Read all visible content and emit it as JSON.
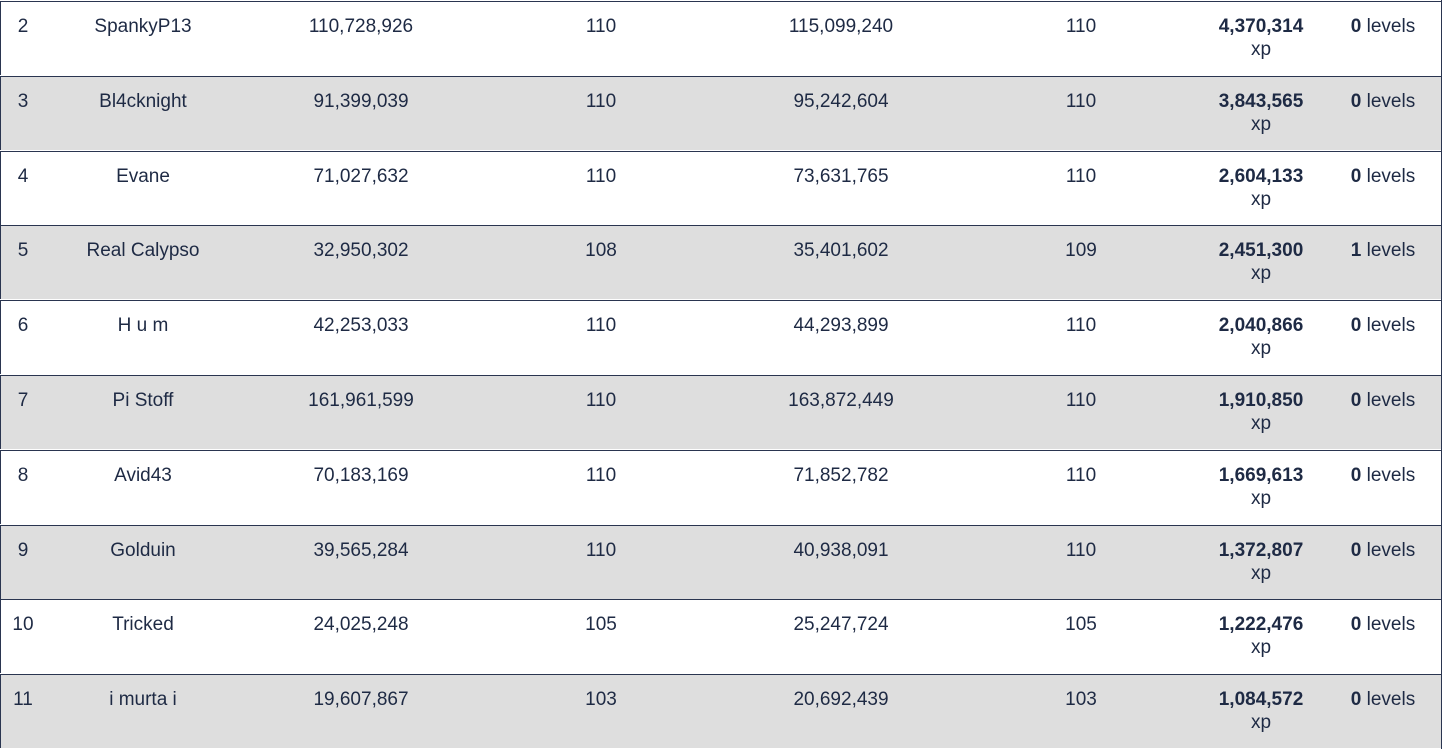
{
  "rows": [
    {
      "rank": "2",
      "name": "SpankyP13",
      "xp_start": "110,728,926",
      "level_start": "110",
      "xp_end": "115,099,240",
      "level_end": "110",
      "xp_gained": "4,370,314",
      "xp_unit": "xp",
      "levels_gained": "0",
      "levels_unit": "levels"
    },
    {
      "rank": "3",
      "name": "Bl4cknight",
      "xp_start": "91,399,039",
      "level_start": "110",
      "xp_end": "95,242,604",
      "level_end": "110",
      "xp_gained": "3,843,565",
      "xp_unit": "xp",
      "levels_gained": "0",
      "levels_unit": "levels"
    },
    {
      "rank": "4",
      "name": "Evane",
      "xp_start": "71,027,632",
      "level_start": "110",
      "xp_end": "73,631,765",
      "level_end": "110",
      "xp_gained": "2,604,133",
      "xp_unit": "xp",
      "levels_gained": "0",
      "levels_unit": "levels"
    },
    {
      "rank": "5",
      "name": "Real Calypso",
      "xp_start": "32,950,302",
      "level_start": "108",
      "xp_end": "35,401,602",
      "level_end": "109",
      "xp_gained": "2,451,300",
      "xp_unit": "xp",
      "levels_gained": "1",
      "levels_unit": "levels"
    },
    {
      "rank": "6",
      "name": "H u m",
      "xp_start": "42,253,033",
      "level_start": "110",
      "xp_end": "44,293,899",
      "level_end": "110",
      "xp_gained": "2,040,866",
      "xp_unit": "xp",
      "levels_gained": "0",
      "levels_unit": "levels"
    },
    {
      "rank": "7",
      "name": "Pi Stoff",
      "xp_start": "161,961,599",
      "level_start": "110",
      "xp_end": "163,872,449",
      "level_end": "110",
      "xp_gained": "1,910,850",
      "xp_unit": "xp",
      "levels_gained": "0",
      "levels_unit": "levels"
    },
    {
      "rank": "8",
      "name": "Avid43",
      "xp_start": "70,183,169",
      "level_start": "110",
      "xp_end": "71,852,782",
      "level_end": "110",
      "xp_gained": "1,669,613",
      "xp_unit": "xp",
      "levels_gained": "0",
      "levels_unit": "levels"
    },
    {
      "rank": "9",
      "name": "Golduin",
      "xp_start": "39,565,284",
      "level_start": "110",
      "xp_end": "40,938,091",
      "level_end": "110",
      "xp_gained": "1,372,807",
      "xp_unit": "xp",
      "levels_gained": "0",
      "levels_unit": "levels"
    },
    {
      "rank": "10",
      "name": "Tricked",
      "xp_start": "24,025,248",
      "level_start": "105",
      "xp_end": "25,247,724",
      "level_end": "105",
      "xp_gained": "1,222,476",
      "xp_unit": "xp",
      "levels_gained": "0",
      "levels_unit": "levels"
    },
    {
      "rank": "11",
      "name": "i murta i",
      "xp_start": "19,607,867",
      "level_start": "103",
      "xp_end": "20,692,439",
      "level_end": "103",
      "xp_gained": "1,084,572",
      "xp_unit": "xp",
      "levels_gained": "0",
      "levels_unit": "levels"
    }
  ],
  "colors": {
    "text": "#1e2a44",
    "row_alt": "#dedede",
    "border": "#2a3550"
  }
}
